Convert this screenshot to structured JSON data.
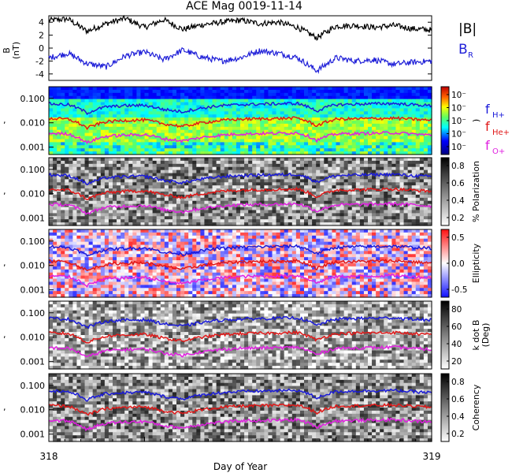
{
  "title": "ACE Mag 0019-11-14",
  "xlabel": "Day of Year",
  "x_tick_labels": [
    "318",
    "319"
  ],
  "colors": {
    "B_total": "#000000",
    "B_R": "#1f1fd8",
    "f_H": "#1a1ad9",
    "f_He": "#e01818",
    "f_O": "#e020e0"
  },
  "top_panel": {
    "ylabel_top": "B",
    "ylabel_bottom": "(nT)",
    "y_tick_labels": [
      "4",
      "2",
      "0",
      "-2",
      "-4"
    ],
    "legend": [
      {
        "text": "|B|",
        "sub": ""
      },
      {
        "text": "B",
        "sub": "R"
      }
    ]
  },
  "freq_ticks": [
    "0.100",
    "0.010",
    "0.001"
  ],
  "line_legend": [
    {
      "base": "f",
      "sub": "H+"
    },
    {
      "base": "f",
      "sub": "He+"
    },
    {
      "base": "f",
      "sub": "O+"
    }
  ],
  "panels": [
    {
      "id": "power",
      "cbar_label": ")",
      "cbar_ticks": [
        "10⁻",
        "10⁻",
        "10⁻",
        "10⁻",
        "10⁻"
      ]
    },
    {
      "id": "polarization",
      "cbar_label": "% Polarization",
      "cbar_ticks": [
        "0.8",
        "0.6",
        "0.4",
        "0.2"
      ]
    },
    {
      "id": "ellipticity",
      "cbar_label": "Ellipticity",
      "cbar_ticks": [
        "0.5",
        "0.0",
        "-0.5"
      ]
    },
    {
      "id": "kdotb",
      "cbar_label": "k dot B",
      "cbar_label2": "(Deg)",
      "cbar_ticks": [
        "80",
        "60",
        "40",
        "20"
      ]
    },
    {
      "id": "coherency",
      "cbar_label": "Coherency",
      "cbar_ticks": [
        "0.8",
        "0.6",
        "0.4",
        "0.2"
      ]
    }
  ],
  "chart_data": {
    "type": "line",
    "title": "ACE Mag 0019-11-14",
    "x_range": [
      318,
      319
    ],
    "series": [
      {
        "name": "|B|",
        "x": [
          318.0,
          318.05,
          318.1,
          318.15,
          318.2,
          318.25,
          318.3,
          318.35,
          318.4,
          318.45,
          318.5,
          318.55,
          318.6,
          318.65,
          318.7,
          318.75,
          318.8,
          318.85,
          318.9,
          318.95,
          319.0
        ],
        "y": [
          4.3,
          4.5,
          2.6,
          3.8,
          4.6,
          3.2,
          4.4,
          2.9,
          3.6,
          4.0,
          4.3,
          3.8,
          4.0,
          3.2,
          1.6,
          3.4,
          3.5,
          3.2,
          3.5,
          3.0,
          2.8
        ]
      },
      {
        "name": "B_R",
        "x": [
          318.0,
          318.05,
          318.1,
          318.15,
          318.2,
          318.25,
          318.3,
          318.35,
          318.4,
          318.45,
          318.5,
          318.55,
          318.6,
          318.65,
          318.7,
          318.75,
          318.8,
          318.85,
          318.9,
          318.95,
          319.0
        ],
        "y": [
          -1.5,
          -0.8,
          -2.4,
          -2.9,
          -1.2,
          -0.6,
          -1.8,
          -0.3,
          -1.4,
          -2.0,
          -1.5,
          -0.4,
          -0.8,
          -1.5,
          -3.5,
          -1.5,
          -2.0,
          -1.8,
          -2.5,
          -2.2,
          -2.0
        ]
      },
      {
        "name": "f_H+",
        "x": [
          318.0,
          318.05,
          318.1,
          318.15,
          318.2,
          318.25,
          318.3,
          318.35,
          318.4,
          318.45,
          318.5,
          318.55,
          318.6,
          318.65,
          318.7,
          318.75,
          318.8,
          318.85,
          318.9,
          318.95,
          319.0
        ],
        "y": [
          0.06,
          0.055,
          0.025,
          0.045,
          0.05,
          0.052,
          0.035,
          0.028,
          0.04,
          0.05,
          0.055,
          0.058,
          0.06,
          0.062,
          0.03,
          0.055,
          0.058,
          0.06,
          0.062,
          0.055,
          0.05
        ]
      },
      {
        "name": "f_He+",
        "x": [
          318.0,
          318.05,
          318.1,
          318.15,
          318.2,
          318.25,
          318.3,
          318.35,
          318.4,
          318.45,
          318.5,
          318.55,
          318.6,
          318.65,
          318.7,
          318.75,
          318.8,
          318.85,
          318.9,
          318.95,
          319.0
        ],
        "y": [
          0.015,
          0.014,
          0.006,
          0.011,
          0.0125,
          0.013,
          0.009,
          0.007,
          0.01,
          0.0125,
          0.014,
          0.0145,
          0.015,
          0.0155,
          0.0075,
          0.014,
          0.0145,
          0.015,
          0.0155,
          0.014,
          0.0125
        ]
      },
      {
        "name": "f_O+",
        "x": [
          318.0,
          318.05,
          318.1,
          318.15,
          318.2,
          318.25,
          318.3,
          318.35,
          318.4,
          318.45,
          318.5,
          318.55,
          318.6,
          318.65,
          318.7,
          318.75,
          318.8,
          318.85,
          318.9,
          318.95,
          319.0
        ],
        "y": [
          0.0037,
          0.0035,
          0.0015,
          0.0028,
          0.0031,
          0.0033,
          0.0022,
          0.0018,
          0.0025,
          0.0031,
          0.0035,
          0.0036,
          0.0037,
          0.0039,
          0.0019,
          0.0035,
          0.0036,
          0.0037,
          0.0039,
          0.0035,
          0.0031
        ]
      }
    ],
    "top_ylim": [
      -5,
      5
    ],
    "freq_ylim_log": [
      0.0005,
      0.3
    ]
  }
}
